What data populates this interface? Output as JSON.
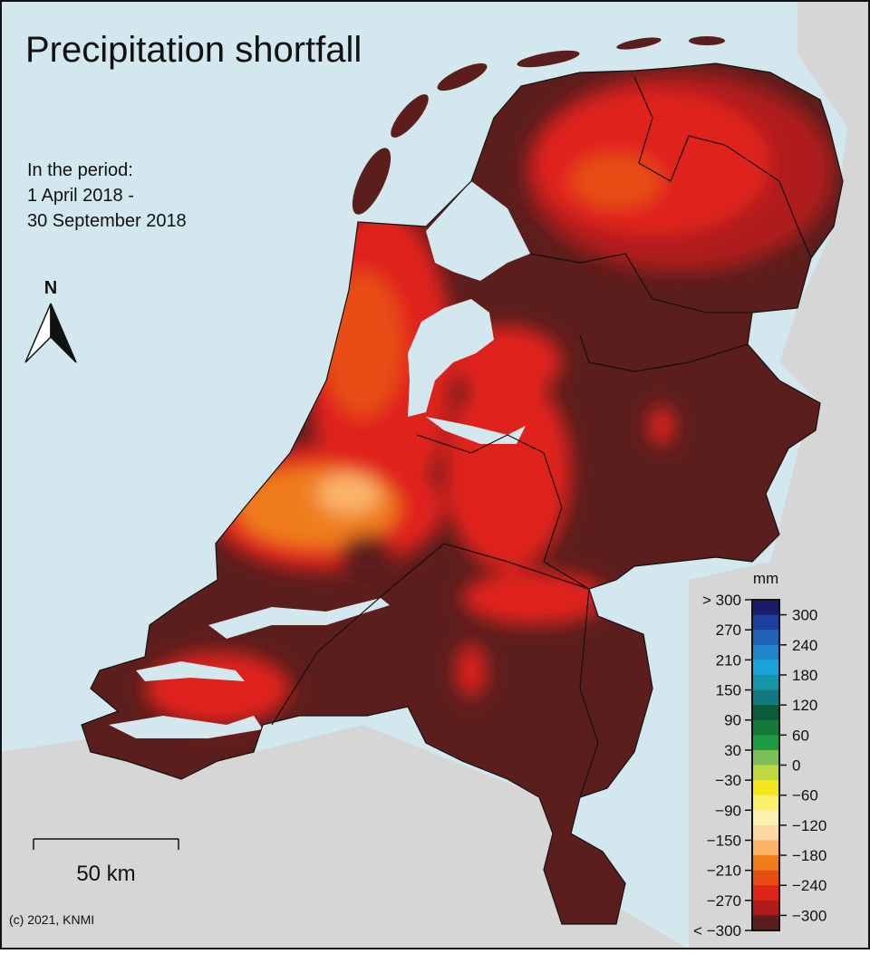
{
  "title": "Precipitation shortfall",
  "period": [
    "In the period:",
    "1 April 2018 -",
    "30 September 2018"
  ],
  "north": "N",
  "scale_bar": "50 km",
  "credit": "(c) 2021, KNMI",
  "legend": {
    "unit": "mm",
    "left_labels": [
      "> 300",
      "270",
      "210",
      "150",
      "90",
      "30",
      "−30",
      "−90",
      "−150",
      "−210",
      "−270",
      "< −300"
    ],
    "right_labels": [
      "300",
      "240",
      "180",
      "120",
      "60",
      "0",
      "−60",
      "−120",
      "−180",
      "−240",
      "−300"
    ],
    "colors": [
      "#1b1b6b",
      "#1d3f9c",
      "#2162b8",
      "#1f86cc",
      "#1aa3d8",
      "#1496a8",
      "#107a80",
      "#0b5a3c",
      "#137a3a",
      "#1e9a44",
      "#7bbf58",
      "#c0d840",
      "#f5e61e",
      "#faf06a",
      "#fbf0b0",
      "#fcd9a4",
      "#fbb46a",
      "#f07d1a",
      "#e84e14",
      "#e0241a",
      "#b01c1c",
      "#5c1e1c"
    ]
  }
}
